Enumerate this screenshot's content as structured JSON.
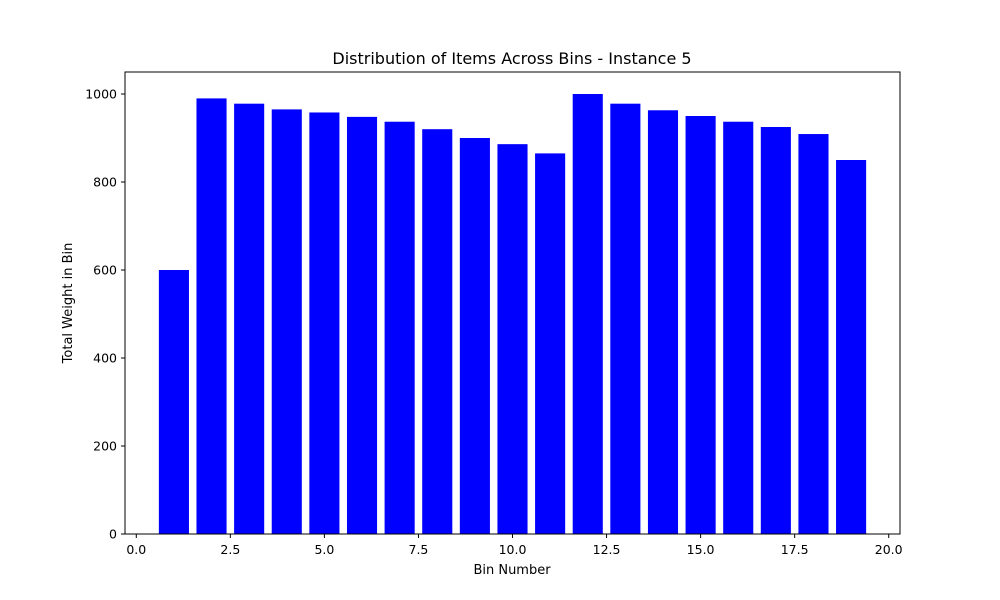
{
  "chart_data": {
    "type": "bar",
    "title": "Distribution of Items Across Bins - Instance 5",
    "xlabel": "Bin Number",
    "ylabel": "Total Weight in Bin",
    "x": [
      1,
      2,
      3,
      4,
      5,
      6,
      7,
      8,
      9,
      10,
      11,
      12,
      13,
      14,
      15,
      16,
      17,
      18,
      19
    ],
    "values": [
      600,
      990,
      978,
      965,
      958,
      948,
      937,
      920,
      900,
      886,
      865,
      1000,
      978,
      963,
      950,
      937,
      925,
      909,
      850
    ],
    "bar_width": 0.8,
    "xlim": [
      -0.3,
      20.3
    ],
    "ylim": [
      0,
      1050
    ],
    "xticks": [
      0.0,
      2.5,
      5.0,
      7.5,
      10.0,
      12.5,
      15.0,
      17.5,
      20.0
    ],
    "xtick_labels": [
      "0.0",
      "2.5",
      "5.0",
      "7.5",
      "10.0",
      "12.5",
      "15.0",
      "17.5",
      "20.0"
    ],
    "yticks": [
      0,
      200,
      400,
      600,
      800,
      1000
    ],
    "ytick_labels": [
      "0",
      "200",
      "400",
      "600",
      "800",
      "1000"
    ],
    "bar_color": "#0000ff",
    "grid": false,
    "legend": "none"
  }
}
